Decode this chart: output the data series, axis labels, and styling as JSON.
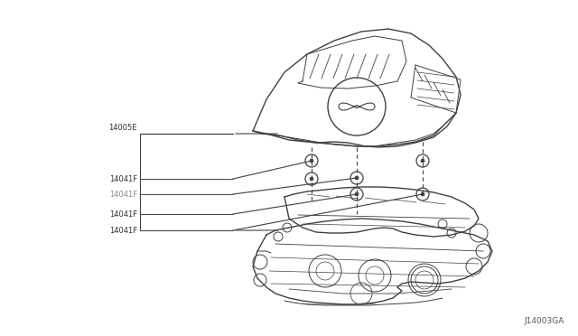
{
  "bg_color": "#e8e8e8",
  "diagram_bg": "#ffffff",
  "line_color": "#404040",
  "text_color": "#303030",
  "footer_text": "J14003GA",
  "label_14005E": "14005E",
  "label_14041F": "14041F",
  "label_color_dark": "#303030",
  "label_color_gray": "#888888"
}
